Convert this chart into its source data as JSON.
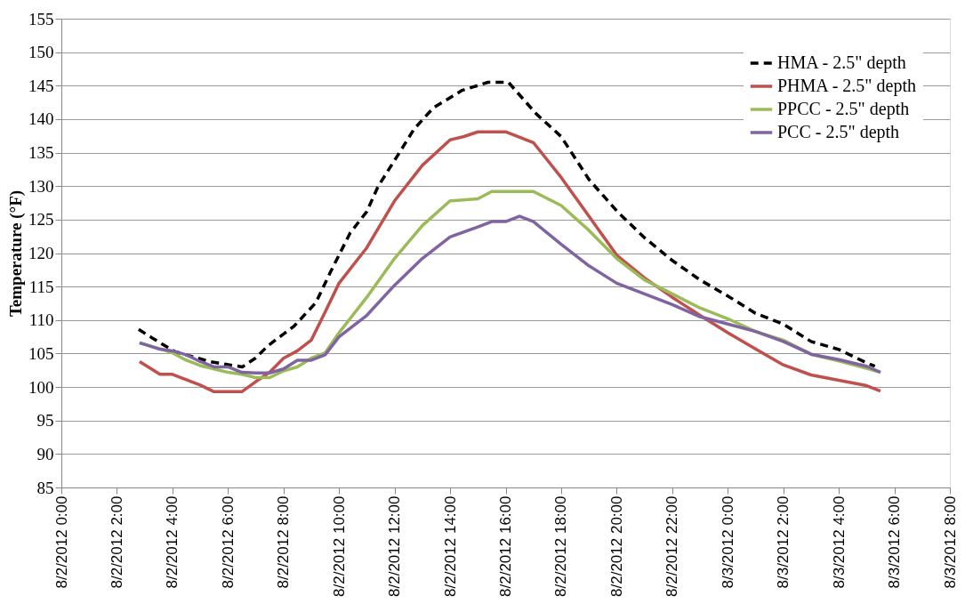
{
  "chart_data": {
    "type": "line",
    "ylabel": "Temperature (°F)",
    "ylim": [
      85,
      155
    ],
    "yticks": [
      85,
      90,
      95,
      100,
      105,
      110,
      115,
      120,
      125,
      130,
      135,
      140,
      145,
      150,
      155
    ],
    "xlim": [
      "2012-08-02T00:00",
      "2012-08-03T08:00"
    ],
    "xticks": [
      {
        "value": "2012-08-02T00:00",
        "label": "8/2/2012 0:00"
      },
      {
        "value": "2012-08-02T02:00",
        "label": "8/2/2012 2:00"
      },
      {
        "value": "2012-08-02T04:00",
        "label": "8/2/2012 4:00"
      },
      {
        "value": "2012-08-02T06:00",
        "label": "8/2/2012 6:00"
      },
      {
        "value": "2012-08-02T08:00",
        "label": "8/2/2012 8:00"
      },
      {
        "value": "2012-08-02T10:00",
        "label": "8/2/2012 10:00"
      },
      {
        "value": "2012-08-02T12:00",
        "label": "8/2/2012 12:00"
      },
      {
        "value": "2012-08-02T14:00",
        "label": "8/2/2012 14:00"
      },
      {
        "value": "2012-08-02T16:00",
        "label": "8/2/2012 16:00"
      },
      {
        "value": "2012-08-02T18:00",
        "label": "8/2/2012 18:00"
      },
      {
        "value": "2012-08-02T20:00",
        "label": "8/2/2012 20:00"
      },
      {
        "value": "2012-08-02T22:00",
        "label": "8/2/2012 22:00"
      },
      {
        "value": "2012-08-03T00:00",
        "label": "8/3/2012 0:00"
      },
      {
        "value": "2012-08-03T02:00",
        "label": "8/3/2012 2:00"
      },
      {
        "value": "2012-08-03T04:00",
        "label": "8/3/2012 4:00"
      },
      {
        "value": "2012-08-03T06:00",
        "label": "8/3/2012 6:00"
      },
      {
        "value": "2012-08-03T08:00",
        "label": "8/3/2012 8:00"
      }
    ],
    "grid": "y",
    "legend": "top right",
    "marker": "none",
    "series": [
      {
        "name": "HMA - 2.5\" depth",
        "color": "#000000",
        "line_style": "dashed",
        "x": [
          "2012-08-02T02:47",
          "2012-08-02T03:19",
          "2012-08-02T04:05",
          "2012-08-02T05:20",
          "2012-08-02T06:31",
          "2012-08-02T06:59",
          "2012-08-02T07:27",
          "2012-08-02T08:23",
          "2012-08-02T09:10",
          "2012-08-02T09:41",
          "2012-08-02T10:24",
          "2012-08-02T11:00",
          "2012-08-02T11:24",
          "2012-08-02T12:06",
          "2012-08-02T12:42",
          "2012-08-02T13:24",
          "2012-08-02T14:26",
          "2012-08-02T15:22",
          "2012-08-02T16:06",
          "2012-08-02T17:06",
          "2012-08-02T18:00",
          "2012-08-02T19:00",
          "2012-08-02T20:00",
          "2012-08-02T21:00",
          "2012-08-02T22:00",
          "2012-08-02T23:00",
          "2012-08-03T00:00",
          "2012-08-03T01:00",
          "2012-08-03T02:00",
          "2012-08-03T03:00",
          "2012-08-03T04:00",
          "2012-08-03T05:00",
          "2012-08-03T05:18"
        ],
        "values": [
          108.6,
          107.2,
          105.3,
          103.8,
          103.0,
          104.3,
          106.2,
          109.1,
          112.6,
          117.1,
          123,
          126.2,
          129.9,
          134.5,
          138.5,
          141.7,
          144.3,
          145.5,
          145.5,
          140.8,
          137.4,
          131,
          126.3,
          122.3,
          118.9,
          116,
          113.6,
          111,
          109.4,
          106.8,
          105.6,
          103.6,
          103.1
        ]
      },
      {
        "name": "PHMA - 2.5\" depth",
        "color": "#c0504d",
        "line_style": "solid",
        "x": [
          "2012-08-02T02:49",
          "2012-08-02T03:33",
          "2012-08-02T04:00",
          "2012-08-02T04:30",
          "2012-08-02T05:00",
          "2012-08-02T05:30",
          "2012-08-02T06:00",
          "2012-08-02T06:30",
          "2012-08-02T07:00",
          "2012-08-02T07:30",
          "2012-08-02T08:00",
          "2012-08-02T08:30",
          "2012-08-02T09:00",
          "2012-08-02T09:30",
          "2012-08-02T10:00",
          "2012-08-02T11:00",
          "2012-08-02T12:00",
          "2012-08-02T13:00",
          "2012-08-02T14:00",
          "2012-08-02T14:30",
          "2012-08-02T15:00",
          "2012-08-02T16:00",
          "2012-08-02T17:00",
          "2012-08-02T18:00",
          "2012-08-02T19:00",
          "2012-08-02T20:00",
          "2012-08-02T21:00",
          "2012-08-02T22:00",
          "2012-08-02T23:00",
          "2012-08-03T00:00",
          "2012-08-03T01:00",
          "2012-08-03T02:00",
          "2012-08-03T03:00",
          "2012-08-03T04:00",
          "2012-08-03T05:00",
          "2012-08-03T05:30"
        ],
        "values": [
          103.8,
          101.9,
          101.9,
          101.1,
          100.3,
          99.3,
          99.3,
          99.3,
          100.8,
          102.2,
          104.3,
          105.4,
          107,
          111.2,
          115.5,
          120.8,
          127.8,
          133.1,
          136.9,
          137.4,
          138.1,
          138.1,
          136.5,
          131.3,
          125.5,
          119.7,
          116.3,
          113.4,
          110.7,
          108.1,
          105.7,
          103.3,
          101.8,
          101.0,
          100.2,
          99.4
        ]
      },
      {
        "name": "PPCC - 2.5\" depth",
        "color": "#9bbb59",
        "line_style": "solid",
        "x": [
          "2012-08-02T02:49",
          "2012-08-02T03:33",
          "2012-08-02T04:00",
          "2012-08-02T04:30",
          "2012-08-02T05:00",
          "2012-08-02T05:30",
          "2012-08-02T06:00",
          "2012-08-02T06:30",
          "2012-08-02T07:00",
          "2012-08-02T07:30",
          "2012-08-02T08:00",
          "2012-08-02T08:30",
          "2012-08-02T09:00",
          "2012-08-02T09:30",
          "2012-08-02T10:00",
          "2012-08-02T11:00",
          "2012-08-02T12:00",
          "2012-08-02T13:00",
          "2012-08-02T14:00",
          "2012-08-02T15:00",
          "2012-08-02T15:30",
          "2012-08-02T17:00",
          "2012-08-02T18:00",
          "2012-08-02T19:00",
          "2012-08-02T20:00",
          "2012-08-02T21:00",
          "2012-08-02T22:00",
          "2012-08-02T23:00",
          "2012-08-03T00:00",
          "2012-08-03T01:00",
          "2012-08-03T02:00",
          "2012-08-03T03:00",
          "2012-08-03T04:00",
          "2012-08-03T05:00",
          "2012-08-03T05:30"
        ],
        "values": [
          106.6,
          105.7,
          105.1,
          104.0,
          103.2,
          102.7,
          102.2,
          101.9,
          101.4,
          101.4,
          102.4,
          103,
          104.3,
          105.1,
          108.1,
          113.4,
          119.2,
          124.1,
          127.8,
          128.1,
          129.2,
          129.2,
          127.1,
          123.4,
          119.2,
          116,
          113.9,
          111.8,
          110.2,
          108.3,
          107,
          104.9,
          103.9,
          102.8,
          102.2
        ]
      },
      {
        "name": "PCC - 2.5\" depth",
        "color": "#8064a2",
        "line_style": "solid",
        "x": [
          "2012-08-02T02:49",
          "2012-08-02T03:30",
          "2012-08-02T04:00",
          "2012-08-02T04:30",
          "2012-08-02T05:00",
          "2012-08-02T05:30",
          "2012-08-02T06:00",
          "2012-08-02T06:30",
          "2012-08-02T07:00",
          "2012-08-02T07:30",
          "2012-08-02T08:00",
          "2012-08-02T08:30",
          "2012-08-02T09:00",
          "2012-08-02T09:30",
          "2012-08-02T10:00",
          "2012-08-02T11:00",
          "2012-08-02T12:00",
          "2012-08-02T13:00",
          "2012-08-02T14:00",
          "2012-08-02T15:00",
          "2012-08-02T15:30",
          "2012-08-02T16:00",
          "2012-08-02T16:30",
          "2012-08-02T17:00",
          "2012-08-02T18:00",
          "2012-08-02T19:00",
          "2012-08-02T20:00",
          "2012-08-02T21:00",
          "2012-08-02T22:00",
          "2012-08-02T23:00",
          "2012-08-03T00:00",
          "2012-08-03T01:00",
          "2012-08-03T02:00",
          "2012-08-03T03:00",
          "2012-08-03T04:00",
          "2012-08-03T05:00",
          "2012-08-03T05:30"
        ],
        "values": [
          106.6,
          105.7,
          105.4,
          104.8,
          103.8,
          103,
          103,
          102.2,
          102.1,
          102.1,
          102.7,
          104,
          104,
          104.8,
          107.5,
          110.7,
          115.2,
          119.2,
          122.4,
          123.9,
          124.7,
          124.7,
          125.5,
          124.7,
          121.3,
          118.1,
          115.5,
          113.9,
          112.3,
          110.5,
          109.4,
          108.3,
          106.8,
          104.9,
          104.1,
          103.1,
          102.2
        ]
      }
    ]
  }
}
